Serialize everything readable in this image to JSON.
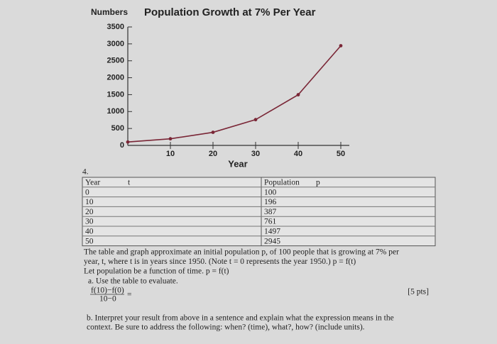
{
  "chart_data": {
    "type": "line",
    "title": "Population Growth at 7% Per Year",
    "y_label": "Numbers",
    "x_label": "Year",
    "x": [
      0,
      10,
      20,
      30,
      40,
      50
    ],
    "values": [
      100,
      196,
      387,
      761,
      1497,
      2945
    ],
    "color": "#7a2636",
    "xlim": [
      0,
      52
    ],
    "ylim": [
      0,
      3500
    ],
    "xticks": [
      10,
      20,
      30,
      40,
      50
    ],
    "yticks": [
      0,
      500,
      1000,
      1500,
      2000,
      2500,
      3000,
      3500
    ]
  },
  "table": {
    "question_number": "4.",
    "headers": [
      "Year",
      "t",
      "Population",
      "p"
    ],
    "rows": [
      [
        0,
        100
      ],
      [
        10,
        196
      ],
      [
        20,
        387
      ],
      [
        30,
        761
      ],
      [
        40,
        1497
      ],
      [
        50,
        2945
      ]
    ]
  },
  "text": {
    "lines": [
      "The table and graph approximate an initial population p, of 100 people that is growing at 7% per",
      "year, t, where t is in years since 1950.  (Note t = 0  represents the year 1950.)   p = f(t)",
      "Let population be a function of time.   p = f(t)"
    ],
    "points": "[5 pts]",
    "part_a": "a. Use the table to evaluate.",
    "fraction": {
      "numerator": "f(10)−f(0)",
      "denominator": "10−0",
      "equals": "="
    },
    "part_b": [
      "b. Interpret your result from above in a sentence and explain what the expression means in the",
      "context.  Be sure to address the following: when? (time), what?, how? (include units)."
    ]
  }
}
